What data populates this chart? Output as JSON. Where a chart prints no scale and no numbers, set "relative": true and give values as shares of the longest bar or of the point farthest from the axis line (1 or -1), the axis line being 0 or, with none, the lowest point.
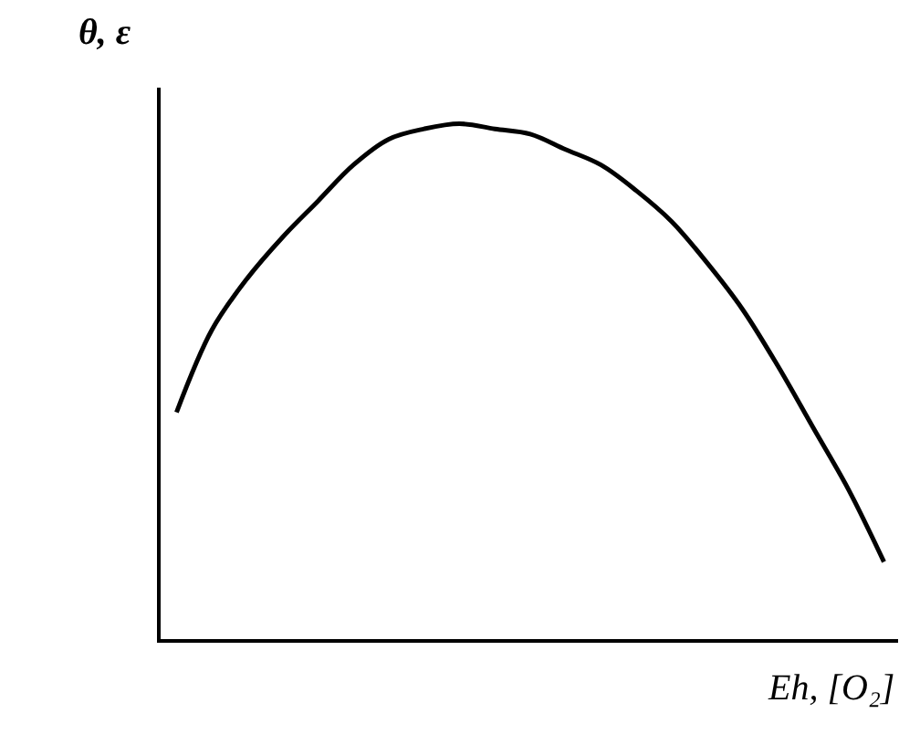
{
  "chart_data": {
    "type": "line",
    "relative": true,
    "xlabel": "Eh, [O₂]",
    "ylabel": "θ, ε",
    "categories": [
      null,
      null,
      null,
      null,
      null,
      null,
      null,
      null,
      null,
      null,
      null,
      null,
      null,
      null,
      null,
      null,
      null,
      null,
      null,
      null,
      null
    ],
    "series": [
      {
        "color": "#000000",
        "values": [
          0.44,
          0.6,
          0.7,
          0.78,
          0.85,
          0.92,
          0.97,
          0.99,
          1.0,
          0.99,
          0.98,
          0.95,
          0.92,
          0.87,
          0.81,
          0.73,
          0.64,
          0.53,
          0.41,
          0.29,
          0.15
        ]
      }
    ],
    "marker": "none",
    "line_style": "solid"
  }
}
